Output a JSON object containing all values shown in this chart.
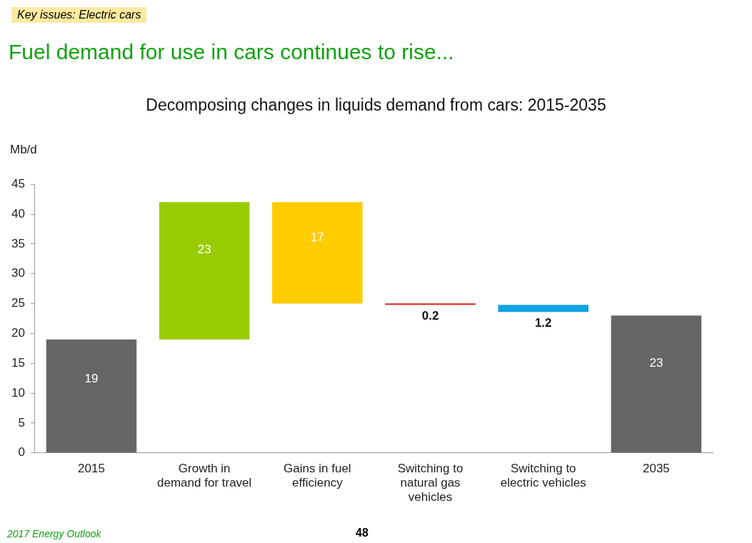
{
  "chart_data": {
    "type": "bar",
    "title": "Fuel demand for use in cars continues to rise...",
    "subtitle": "Decomposing changes in liquids demand from cars: 2015-2035",
    "ylabel": "Mb/d",
    "categories": [
      "2015",
      "Growth in\ndemand for travel",
      "Gains in fuel\nefficiency",
      "Switching to\nnatural gas\nvehicles",
      "Switching to\nelectric vehicles",
      "2035"
    ],
    "values": [
      19,
      23,
      -17,
      -0.2,
      -1.2,
      23
    ],
    "base": [
      0,
      19,
      42,
      25,
      24.8,
      0
    ],
    "colors": [
      "#666666",
      "#99cc00",
      "#ffcc00",
      "#e0201b",
      "#12a3e3",
      "#666666"
    ],
    "value_labels": [
      "19",
      "23",
      "17",
      "0.2",
      "1.2",
      "23"
    ],
    "ylim": [
      0,
      45
    ],
    "yticks": [
      0,
      5,
      10,
      15,
      20,
      25,
      30,
      35,
      40,
      45
    ],
    "grid": false,
    "legend": false,
    "annotations": [
      "Key issues: Electric cars",
      "2017 Energy Outlook",
      "48"
    ]
  }
}
